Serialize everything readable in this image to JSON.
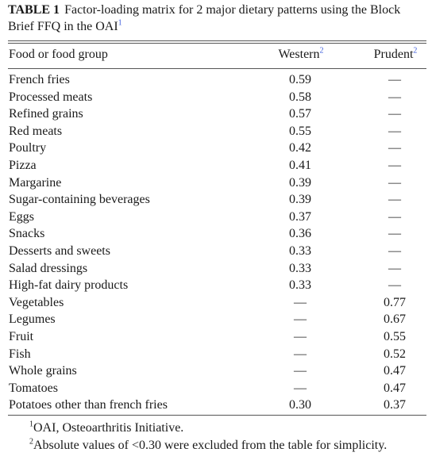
{
  "title": {
    "label": "TABLE 1",
    "text": "Factor-loading matrix for 2 major dietary patterns using the Block Brief FFQ in the OAI",
    "sup": "1"
  },
  "columns": {
    "food": "Food or food group",
    "western": "Western",
    "western_sup": "2",
    "prudent": "Prudent",
    "prudent_sup": "2"
  },
  "rows": [
    {
      "food": "French fries",
      "western": "0.59",
      "prudent": "—"
    },
    {
      "food": "Processed meats",
      "western": "0.58",
      "prudent": "—"
    },
    {
      "food": "Refined grains",
      "western": "0.57",
      "prudent": "—"
    },
    {
      "food": "Red meats",
      "western": "0.55",
      "prudent": "—"
    },
    {
      "food": "Poultry",
      "western": "0.42",
      "prudent": "—"
    },
    {
      "food": "Pizza",
      "western": "0.41",
      "prudent": "—"
    },
    {
      "food": "Margarine",
      "western": "0.39",
      "prudent": "—"
    },
    {
      "food": "Sugar-containing beverages",
      "western": "0.39",
      "prudent": "—"
    },
    {
      "food": "Eggs",
      "western": "0.37",
      "prudent": "—"
    },
    {
      "food": "Snacks",
      "western": "0.36",
      "prudent": "—"
    },
    {
      "food": "Desserts and sweets",
      "western": "0.33",
      "prudent": "—"
    },
    {
      "food": "Salad dressings",
      "western": "0.33",
      "prudent": "—"
    },
    {
      "food": "High-fat dairy products",
      "western": "0.33",
      "prudent": "—"
    },
    {
      "food": "Vegetables",
      "western": "—",
      "prudent": "0.77"
    },
    {
      "food": "Legumes",
      "western": "—",
      "prudent": "0.67"
    },
    {
      "food": "Fruit",
      "western": "—",
      "prudent": "0.55"
    },
    {
      "food": "Fish",
      "western": "—",
      "prudent": "0.52"
    },
    {
      "food": "Whole grains",
      "western": "—",
      "prudent": "0.47"
    },
    {
      "food": "Tomatoes",
      "western": "—",
      "prudent": "0.47"
    },
    {
      "food": "Potatoes other than french fries",
      "western": "0.30",
      "prudent": "0.37"
    }
  ],
  "footnotes": [
    {
      "sup": "1",
      "text": "OAI, Osteoarthritis Initiative."
    },
    {
      "sup": "2",
      "text": "Absolute values of <0.30 were excluded from the table for simplicity."
    }
  ]
}
